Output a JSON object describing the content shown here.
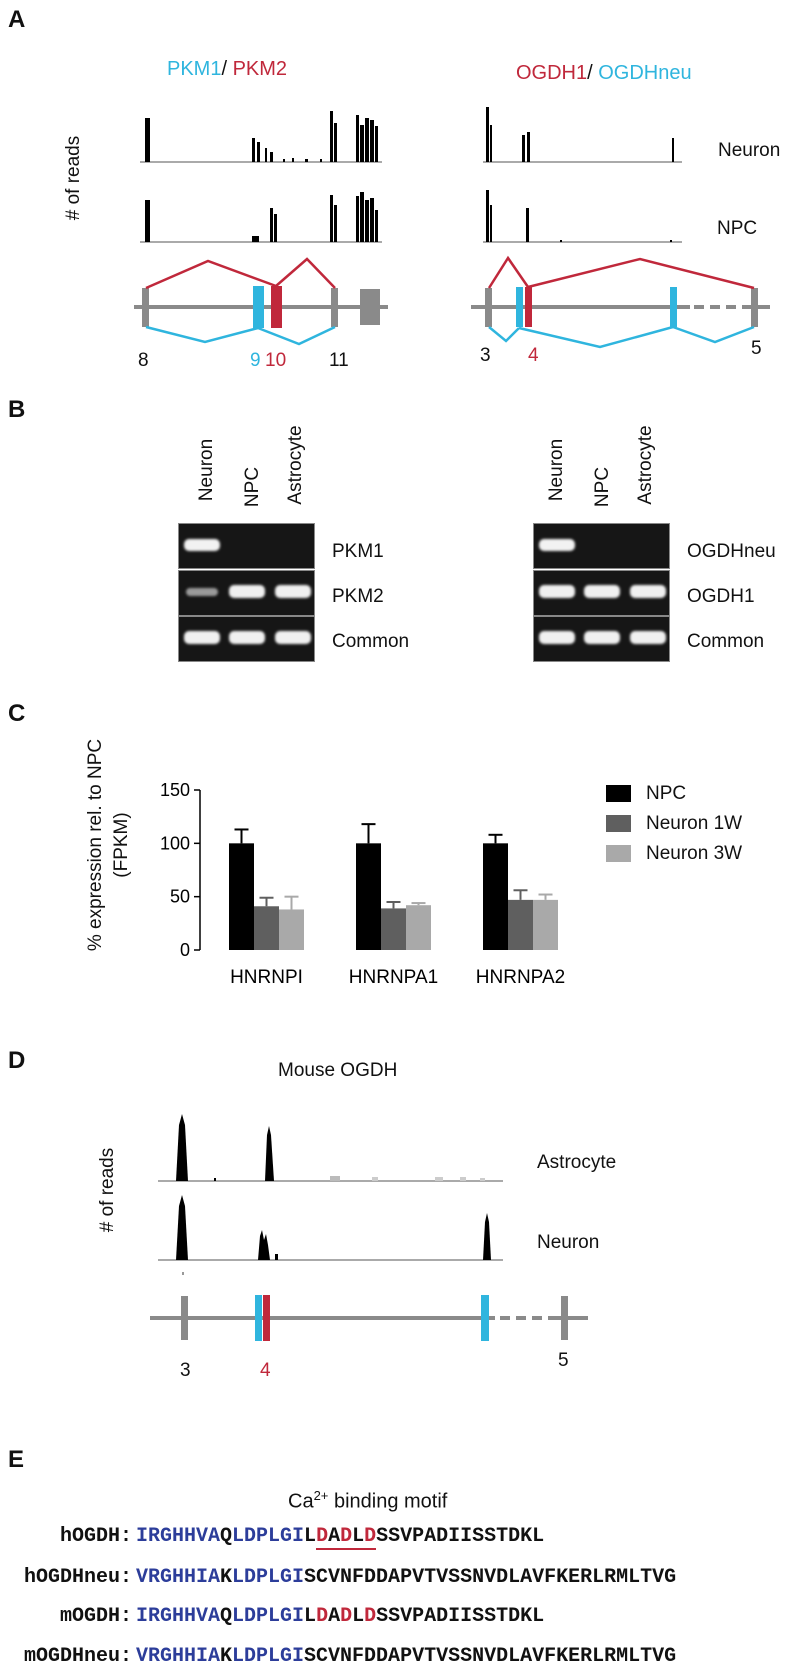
{
  "panels": {
    "a": {
      "label": "A",
      "pkm_title_1": "PKM1",
      "pkm_sep": "/ ",
      "pkm_title_2": "PKM2",
      "ogdh_title_1": "OGDH1",
      "ogdh_sep": "/ ",
      "ogdh_title_2": "OGDHneu",
      "ylabel": "# of reads",
      "track_neuron": "Neuron",
      "track_npc": "NPC",
      "pkm_exons": [
        "8",
        "9",
        "10",
        "11"
      ],
      "ogdh_exons": [
        "3",
        "4",
        "5"
      ],
      "colors": {
        "cyan": "#2fb5de",
        "red": "#c0283b",
        "grey": "#8a8a8a"
      }
    },
    "b": {
      "label": "B",
      "lanes": [
        "Neuron",
        "NPC",
        "Astrocyte"
      ],
      "pkm_rows": [
        "PKM1",
        "PKM2",
        "Common"
      ],
      "ogdh_rows": [
        "OGDHneu",
        "OGDH1",
        "Common"
      ]
    },
    "c": {
      "label": "C",
      "ylabel_1": "% expression rel. to NPC",
      "ylabel_2": "(FPKM)",
      "legend": [
        "NPC",
        "Neuron 1W",
        "Neuron 3W"
      ]
    },
    "d": {
      "label": "D",
      "title": "Mouse OGDH",
      "ylabel": "# of reads",
      "track_astrocyte": "Astrocyte",
      "track_neuron": "Neuron",
      "exons": [
        "3",
        "4",
        "5"
      ]
    },
    "e": {
      "label": "E",
      "motif_prefix": "Ca",
      "motif_sup": "2+",
      "motif_suffix": " binding motif",
      "rows": [
        {
          "name": "hOGDH:",
          "blue1": "IRGHHVA",
          "black1": "Q",
          "blue2": "LDPLGI",
          "tail": "L",
          "motif": [
            "D",
            "A",
            "D",
            "L",
            "D"
          ],
          "rest": "SSVPADIISSTDKL"
        },
        {
          "name": "hOGDHneu:",
          "blue1": "VRGHHIA",
          "black1": "K",
          "blue2": "LDPLGI",
          "tail": "SCVNFDDAPVTVSSNVDLAVFKERLRMLTVG"
        },
        {
          "name": "mOGDH:",
          "blue1": "IRGHHVA",
          "black1": "Q",
          "blue2": "LDPLGI",
          "tail": "L",
          "motif": [
            "D",
            "A",
            "D",
            "L",
            "D"
          ],
          "rest": "SSVPADIISSTDKL"
        },
        {
          "name": "mOGDHneu:",
          "blue1": "VRGHHIA",
          "black1": "K",
          "blue2": "LDPLGI",
          "tail": "SCVNFDDAPVTVSSNVDLAVFKERLRMLTVG"
        }
      ]
    }
  },
  "chart_data": {
    "type": "bar",
    "categories": [
      "HNRNPI",
      "HNRNPA1",
      "HNRNPA2"
    ],
    "series": [
      {
        "name": "NPC",
        "values": [
          100,
          100,
          100
        ],
        "errors": [
          13,
          18,
          8
        ],
        "color": "#000000"
      },
      {
        "name": "Neuron 1W",
        "values": [
          41,
          39,
          47
        ],
        "errors": [
          8,
          6,
          9
        ],
        "color": "#5f5f5f"
      },
      {
        "name": "Neuron 3W",
        "values": [
          38,
          42,
          47
        ],
        "errors": [
          12,
          2,
          5
        ],
        "color": "#a9a9a9"
      }
    ],
    "ylim": [
      0,
      150
    ],
    "yticks": [
      0,
      50,
      100,
      150
    ],
    "xlabel": "",
    "ylabel": "% expression rel. to NPC (FPKM)"
  }
}
